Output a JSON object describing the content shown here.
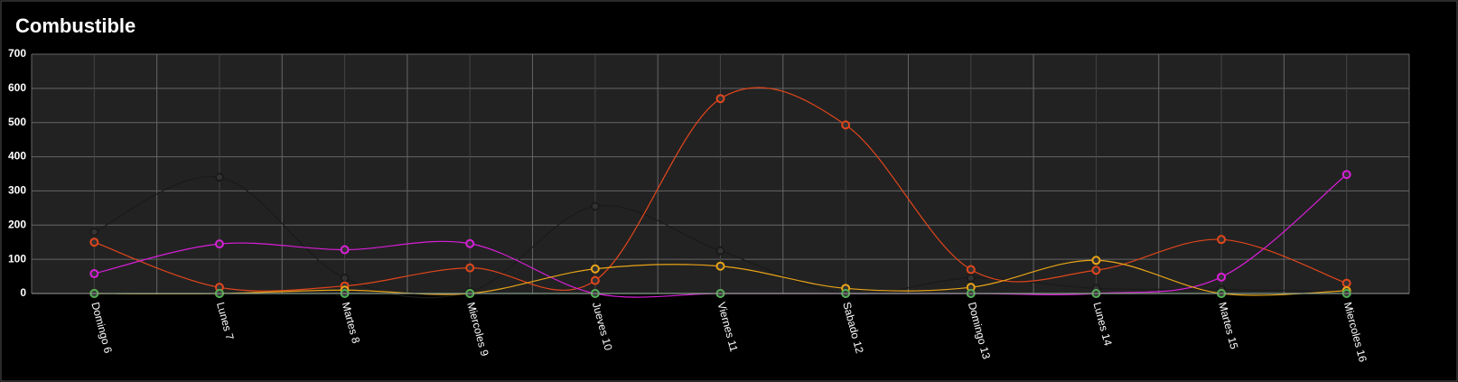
{
  "chart_data": {
    "type": "line",
    "title": "Combustible",
    "categories": [
      "Domingo 6",
      "Lunes 7",
      "Martes 8",
      "Miercoles 9",
      "Jueves 10",
      "Viernes 11",
      "Sabado 12",
      "Domingo 13",
      "Lunes 14",
      "Martes 15",
      "Miercoles 16"
    ],
    "series": [
      {
        "color": "#1a1a1a",
        "values": [
          180,
          340,
          45,
          5,
          255,
          125,
          0,
          45,
          15,
          12,
          5
        ]
      },
      {
        "color": "#e0461c",
        "values": [
          150,
          18,
          22,
          75,
          38,
          570,
          493,
          70,
          68,
          158,
          30
        ]
      },
      {
        "color": "#d81fd8",
        "values": [
          58,
          145,
          128,
          146,
          0,
          0,
          0,
          0,
          0,
          48,
          348
        ]
      },
      {
        "color": "#e8a317",
        "values": [
          0,
          0,
          10,
          0,
          72,
          80,
          15,
          18,
          97,
          0,
          8
        ]
      },
      {
        "color": "#4caf50",
        "values": [
          0,
          0,
          0,
          0,
          0,
          0,
          0,
          0,
          0,
          0,
          0
        ]
      }
    ],
    "ylim": [
      0,
      700
    ],
    "yticks": [
      0,
      100,
      200,
      300,
      400,
      500,
      600,
      700
    ],
    "grid": true
  }
}
